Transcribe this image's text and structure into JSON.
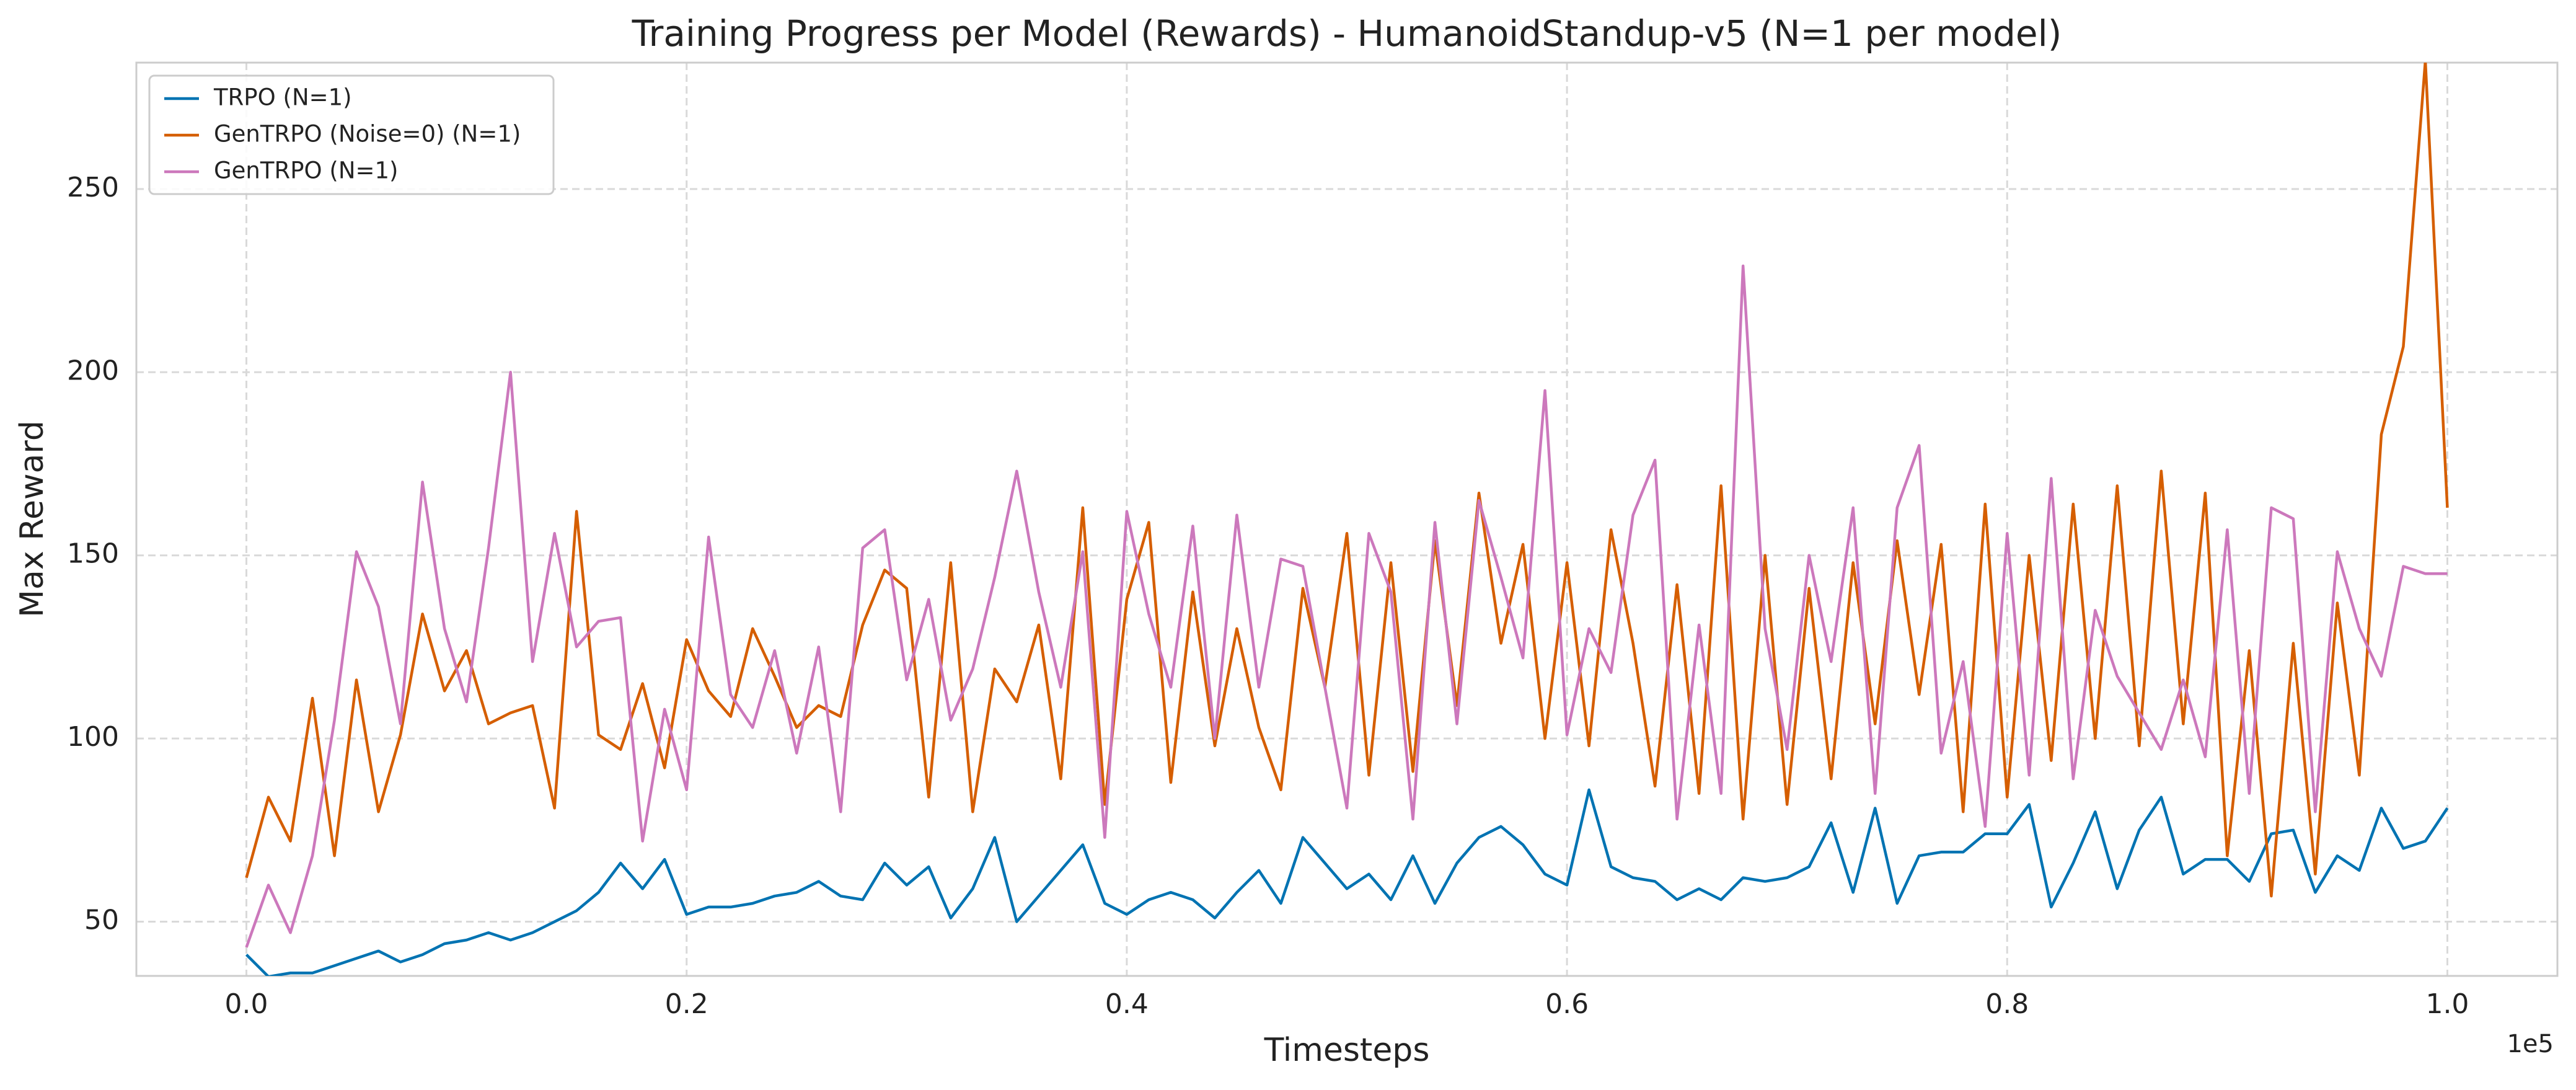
{
  "chart_data": {
    "type": "line",
    "title": "Training Progress per Model (Rewards) - HumanoidStandup-v5 (N=1 per model)",
    "xlabel": "Timesteps",
    "ylabel": "Max Reward",
    "x_offset_text": "1e5",
    "x": [
      0,
      1000,
      2000,
      3000,
      4000,
      5000,
      6000,
      7000,
      8000,
      9000,
      10000,
      11000,
      12000,
      13000,
      14000,
      15000,
      16000,
      17000,
      18000,
      19000,
      20000,
      21000,
      22000,
      23000,
      24000,
      25000,
      26000,
      27000,
      28000,
      29000,
      30000,
      31000,
      32000,
      33000,
      34000,
      35000,
      36000,
      37000,
      38000,
      39000,
      40000,
      41000,
      42000,
      43000,
      44000,
      45000,
      46000,
      47000,
      48000,
      49000,
      50000,
      51000,
      52000,
      53000,
      54000,
      55000,
      56000,
      57000,
      58000,
      59000,
      60000,
      61000,
      62000,
      63000,
      64000,
      65000,
      66000,
      67000,
      68000,
      69000,
      70000,
      71000,
      72000,
      73000,
      74000,
      75000,
      76000,
      77000,
      78000,
      79000,
      80000,
      81000,
      82000,
      83000,
      84000,
      85000,
      86000,
      87000,
      88000,
      89000,
      90000,
      91000,
      92000,
      93000,
      94000,
      95000,
      96000,
      97000,
      98000,
      99000,
      100000
    ],
    "series": [
      {
        "name": "TRPO (N=1)",
        "color": "#0173b2",
        "values": [
          41,
          35,
          36,
          36,
          38,
          40,
          42,
          39,
          41,
          44,
          45,
          47,
          45,
          47,
          50,
          53,
          58,
          66,
          59,
          67,
          52,
          54,
          54,
          55,
          57,
          58,
          61,
          57,
          56,
          66,
          60,
          65,
          51,
          59,
          73,
          50,
          57,
          64,
          71,
          55,
          52,
          56,
          58,
          56,
          51,
          58,
          64,
          55,
          73,
          66,
          59,
          63,
          56,
          68,
          55,
          66,
          73,
          76,
          71,
          63,
          60,
          86,
          65,
          62,
          61,
          56,
          59,
          56,
          62,
          61,
          62,
          65,
          77,
          58,
          81,
          55,
          68,
          69,
          69,
          74,
          74,
          82,
          54,
          66,
          80,
          59,
          75,
          84,
          63,
          67,
          67,
          61,
          74,
          75,
          58,
          68,
          64,
          81,
          70,
          72,
          81
        ]
      },
      {
        "name": "GenTRPO (Noise=0) (N=1)",
        "color": "#d55e00",
        "values": [
          62,
          84,
          72,
          111,
          68,
          116,
          80,
          101,
          134,
          113,
          124,
          104,
          107,
          109,
          81,
          162,
          101,
          97,
          115,
          92,
          127,
          113,
          106,
          130,
          117,
          103,
          109,
          106,
          131,
          146,
          141,
          84,
          148,
          80,
          119,
          110,
          131,
          89,
          163,
          82,
          138,
          159,
          88,
          140,
          98,
          130,
          103,
          86,
          141,
          114,
          156,
          90,
          148,
          91,
          154,
          109,
          167,
          126,
          153,
          100,
          148,
          98,
          157,
          126,
          87,
          142,
          85,
          169,
          78,
          150,
          82,
          141,
          89,
          148,
          104,
          154,
          112,
          153,
          80,
          164,
          84,
          150,
          94,
          164,
          100,
          169,
          98,
          173,
          104,
          167,
          68,
          124,
          57,
          126,
          63,
          137,
          90,
          183,
          207,
          285,
          163
        ]
      },
      {
        "name": "GenTRPO (N=1)",
        "color": "#cc78bc",
        "values": [
          43,
          60,
          47,
          68,
          105,
          151,
          136,
          104,
          170,
          130,
          110,
          152,
          200,
          121,
          156,
          125,
          132,
          133,
          72,
          108,
          86,
          155,
          112,
          103,
          124,
          96,
          125,
          80,
          152,
          157,
          116,
          138,
          105,
          119,
          144,
          173,
          140,
          114,
          151,
          73,
          162,
          134,
          114,
          158,
          100,
          161,
          114,
          149,
          147,
          114,
          81,
          156,
          140,
          78,
          159,
          104,
          165,
          144,
          122,
          195,
          101,
          130,
          118,
          161,
          176,
          78,
          131,
          85,
          229,
          130,
          97,
          150,
          121,
          163,
          85,
          163,
          180,
          96,
          121,
          76,
          156,
          90,
          171,
          89,
          135,
          117,
          107,
          97,
          116,
          95,
          157,
          85,
          163,
          160,
          80,
          151,
          130,
          117,
          147,
          145,
          145
        ]
      }
    ],
    "xlim": [
      -5000,
      105000
    ],
    "ylim": [
      35.2,
      284.5
    ],
    "xticks": [
      {
        "value": 0,
        "label": "0.0"
      },
      {
        "value": 20000,
        "label": "0.2"
      },
      {
        "value": 40000,
        "label": "0.4"
      },
      {
        "value": 60000,
        "label": "0.6"
      },
      {
        "value": 80000,
        "label": "0.8"
      },
      {
        "value": 100000,
        "label": "1.0"
      }
    ],
    "yticks": [
      50,
      100,
      150,
      200,
      250
    ],
    "grid": true,
    "legend": "upper left"
  }
}
